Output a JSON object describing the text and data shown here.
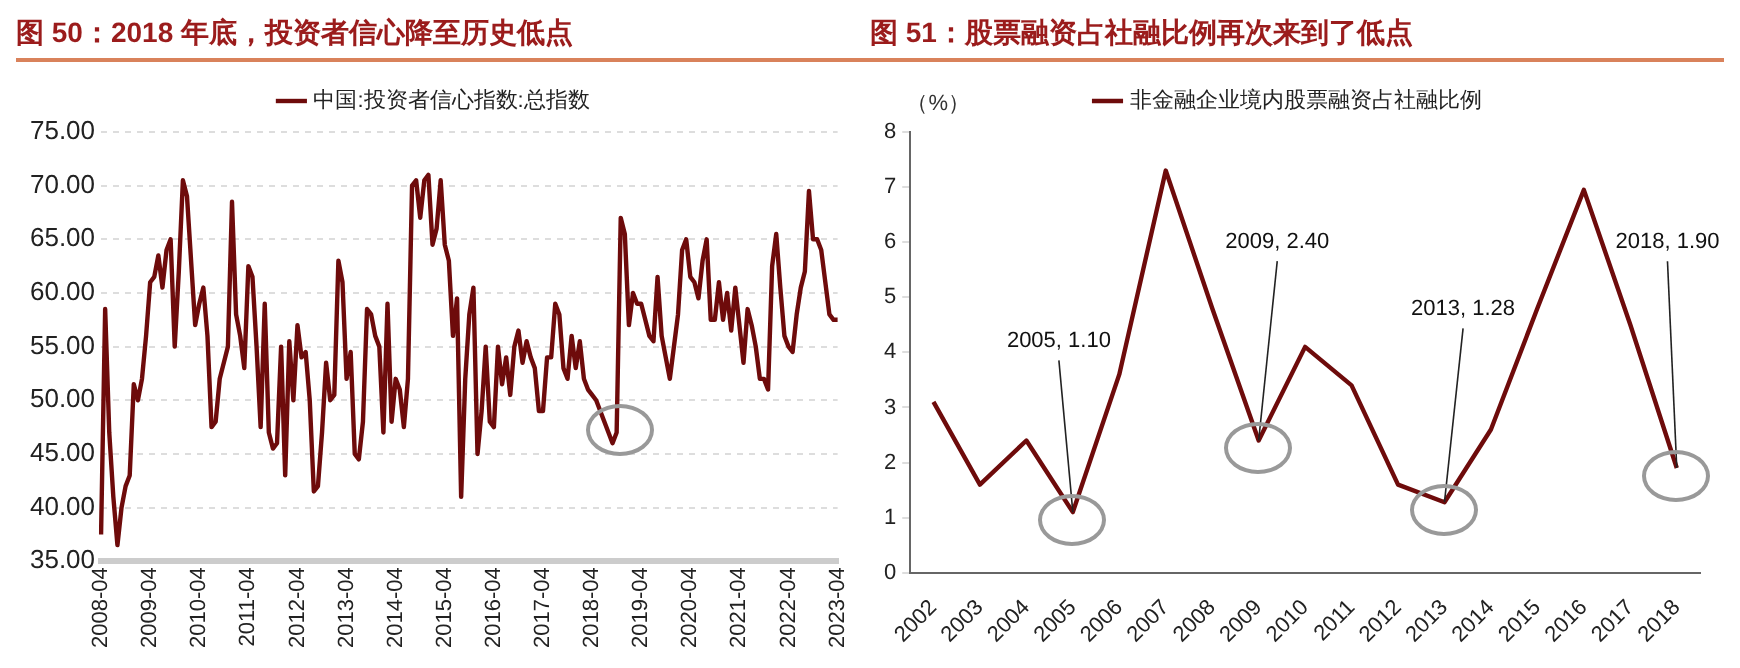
{
  "chart_data": [
    {
      "type": "line",
      "title": "图 50：2018 年底，投资者信心降至历史低点",
      "categories": [
        "2008-04",
        null,
        null,
        null,
        null,
        null,
        null,
        null,
        null,
        null,
        null,
        null,
        "2009-04",
        null,
        null,
        null,
        null,
        null,
        null,
        null,
        null,
        null,
        null,
        null,
        "2010-04",
        null,
        null,
        null,
        null,
        null,
        null,
        null,
        null,
        null,
        null,
        null,
        "2011-04",
        null,
        null,
        null,
        null,
        null,
        null,
        null,
        null,
        null,
        null,
        null,
        "2012-04",
        null,
        null,
        null,
        null,
        null,
        null,
        null,
        null,
        null,
        null,
        null,
        "2013-04",
        null,
        null,
        null,
        null,
        null,
        null,
        null,
        null,
        null,
        null,
        null,
        "2014-04",
        null,
        null,
        null,
        null,
        null,
        null,
        null,
        null,
        null,
        null,
        null,
        "2015-04",
        null,
        null,
        null,
        null,
        null,
        null,
        null,
        null,
        null,
        null,
        null,
        "2016-04",
        null,
        null,
        null,
        null,
        null,
        null,
        null,
        null,
        null,
        null,
        null,
        "2017-04",
        null,
        null,
        null,
        null,
        null,
        null,
        null,
        null,
        null,
        null,
        null,
        "2018-04",
        null,
        null,
        null,
        null,
        null,
        null,
        null,
        null,
        null,
        null,
        null,
        "2019-04",
        null,
        null,
        null,
        null,
        null,
        null,
        null,
        null,
        null,
        null,
        null,
        "2020-04",
        null,
        null,
        null,
        null,
        null,
        null,
        null,
        null,
        null,
        null,
        null,
        "2021-04",
        null,
        null,
        null,
        null,
        null,
        null,
        null,
        null,
        null,
        null,
        null,
        "2022-04",
        null,
        null,
        null,
        null,
        null,
        null,
        null,
        null,
        null,
        null,
        null,
        "2023-04"
      ],
      "series": [
        {
          "name": "中国:投资者信心指数:总指数",
          "color": "#6e0b0b",
          "values": [
            37.5,
            58.5,
            47,
            41,
            36.5,
            40,
            42,
            43,
            51.5,
            50,
            52,
            56,
            61,
            61.5,
            63.5,
            60.5,
            64,
            65,
            55,
            62,
            70.5,
            69,
            63,
            57,
            59,
            60.5,
            56,
            47.5,
            48,
            52,
            53.5,
            55,
            68.5,
            58,
            56,
            53,
            62.5,
            61.5,
            55,
            47.5,
            59,
            47,
            45.5,
            46,
            55,
            43,
            55.5,
            50,
            57,
            54,
            54.5,
            50,
            41.5,
            42,
            47,
            53.5,
            50,
            50.5,
            63,
            61,
            52,
            54.5,
            45,
            44.5,
            48,
            58.5,
            58,
            56,
            55,
            47,
            59,
            48,
            52,
            51,
            47.5,
            52,
            70,
            70.5,
            67,
            70.5,
            71,
            64.5,
            66,
            70.5,
            64.5,
            63,
            56,
            59.5,
            41,
            52,
            58,
            60.5,
            45,
            49,
            55,
            48,
            47.5,
            55,
            51.5,
            54,
            50.5,
            55,
            56.5,
            53.5,
            55.5,
            54,
            53,
            49,
            49,
            54,
            54,
            59,
            58,
            53,
            52,
            56,
            53,
            55.5,
            52,
            51,
            50.5,
            50,
            49,
            48,
            47,
            46,
            47,
            67,
            65.5,
            57,
            60,
            59,
            59,
            57.5,
            56,
            55.5,
            61.5,
            56,
            54,
            52,
            55,
            58,
            64,
            65,
            61.5,
            61,
            59.5,
            63,
            65,
            57.5,
            57.5,
            61,
            57.5,
            60,
            56.5,
            60.5,
            57,
            53.5,
            58.5,
            57,
            55,
            52,
            52,
            51,
            62.5,
            65.5,
            60.5,
            56,
            55,
            54.5,
            58,
            60.5,
            62,
            69.5,
            65,
            65,
            64,
            61,
            58,
            57.5,
            57.5
          ]
        }
      ],
      "ylim": [
        35,
        75
      ],
      "yticks": [
        {
          "value": 35,
          "label": "35.00"
        },
        {
          "value": 40,
          "label": "40.00"
        },
        {
          "value": 45,
          "label": "45.00"
        },
        {
          "value": 50,
          "label": "50.00"
        },
        {
          "value": 55,
          "label": "55.00"
        },
        {
          "value": 60,
          "label": "60.00"
        },
        {
          "value": 65,
          "label": "65.00"
        },
        {
          "value": 70,
          "label": "70.00"
        },
        {
          "value": 75,
          "label": "75.00"
        }
      ],
      "grid": "y",
      "legend": "top"
    },
    {
      "type": "line",
      "title": "图 51：股票融资占社融比例再次来到了低点",
      "ylabel": "（%）",
      "categories": [
        "2002",
        "2003",
        "2004",
        "2005",
        "2006",
        "2007",
        "2008",
        "2009",
        "2010",
        "2011",
        "2012",
        "2013",
        "2014",
        "2015",
        "2016",
        "2017",
        "2018"
      ],
      "series": [
        {
          "name": "非金融企业境内股票融资占社融比例",
          "color": "#6e0b0b",
          "values": [
            3.1,
            1.6,
            2.4,
            1.1,
            3.6,
            7.3,
            4.8,
            2.4,
            4.1,
            3.4,
            1.6,
            1.28,
            2.6,
            4.8,
            6.95,
            4.5,
            1.9
          ]
        }
      ],
      "ylim": [
        0,
        8
      ],
      "yticks": [
        0,
        1,
        2,
        3,
        4,
        5,
        6,
        7,
        8
      ],
      "legend": "top",
      "annotations": [
        {
          "text": "2005, 1.10",
          "x": "2005",
          "y": 1.1
        },
        {
          "text": "2009, 2.40",
          "x": "2009",
          "y": 2.4
        },
        {
          "text": "2013, 1.28",
          "x": "2013",
          "y": 1.28
        },
        {
          "text": "2018, 1.90",
          "x": "2018",
          "y": 1.9
        }
      ]
    }
  ]
}
